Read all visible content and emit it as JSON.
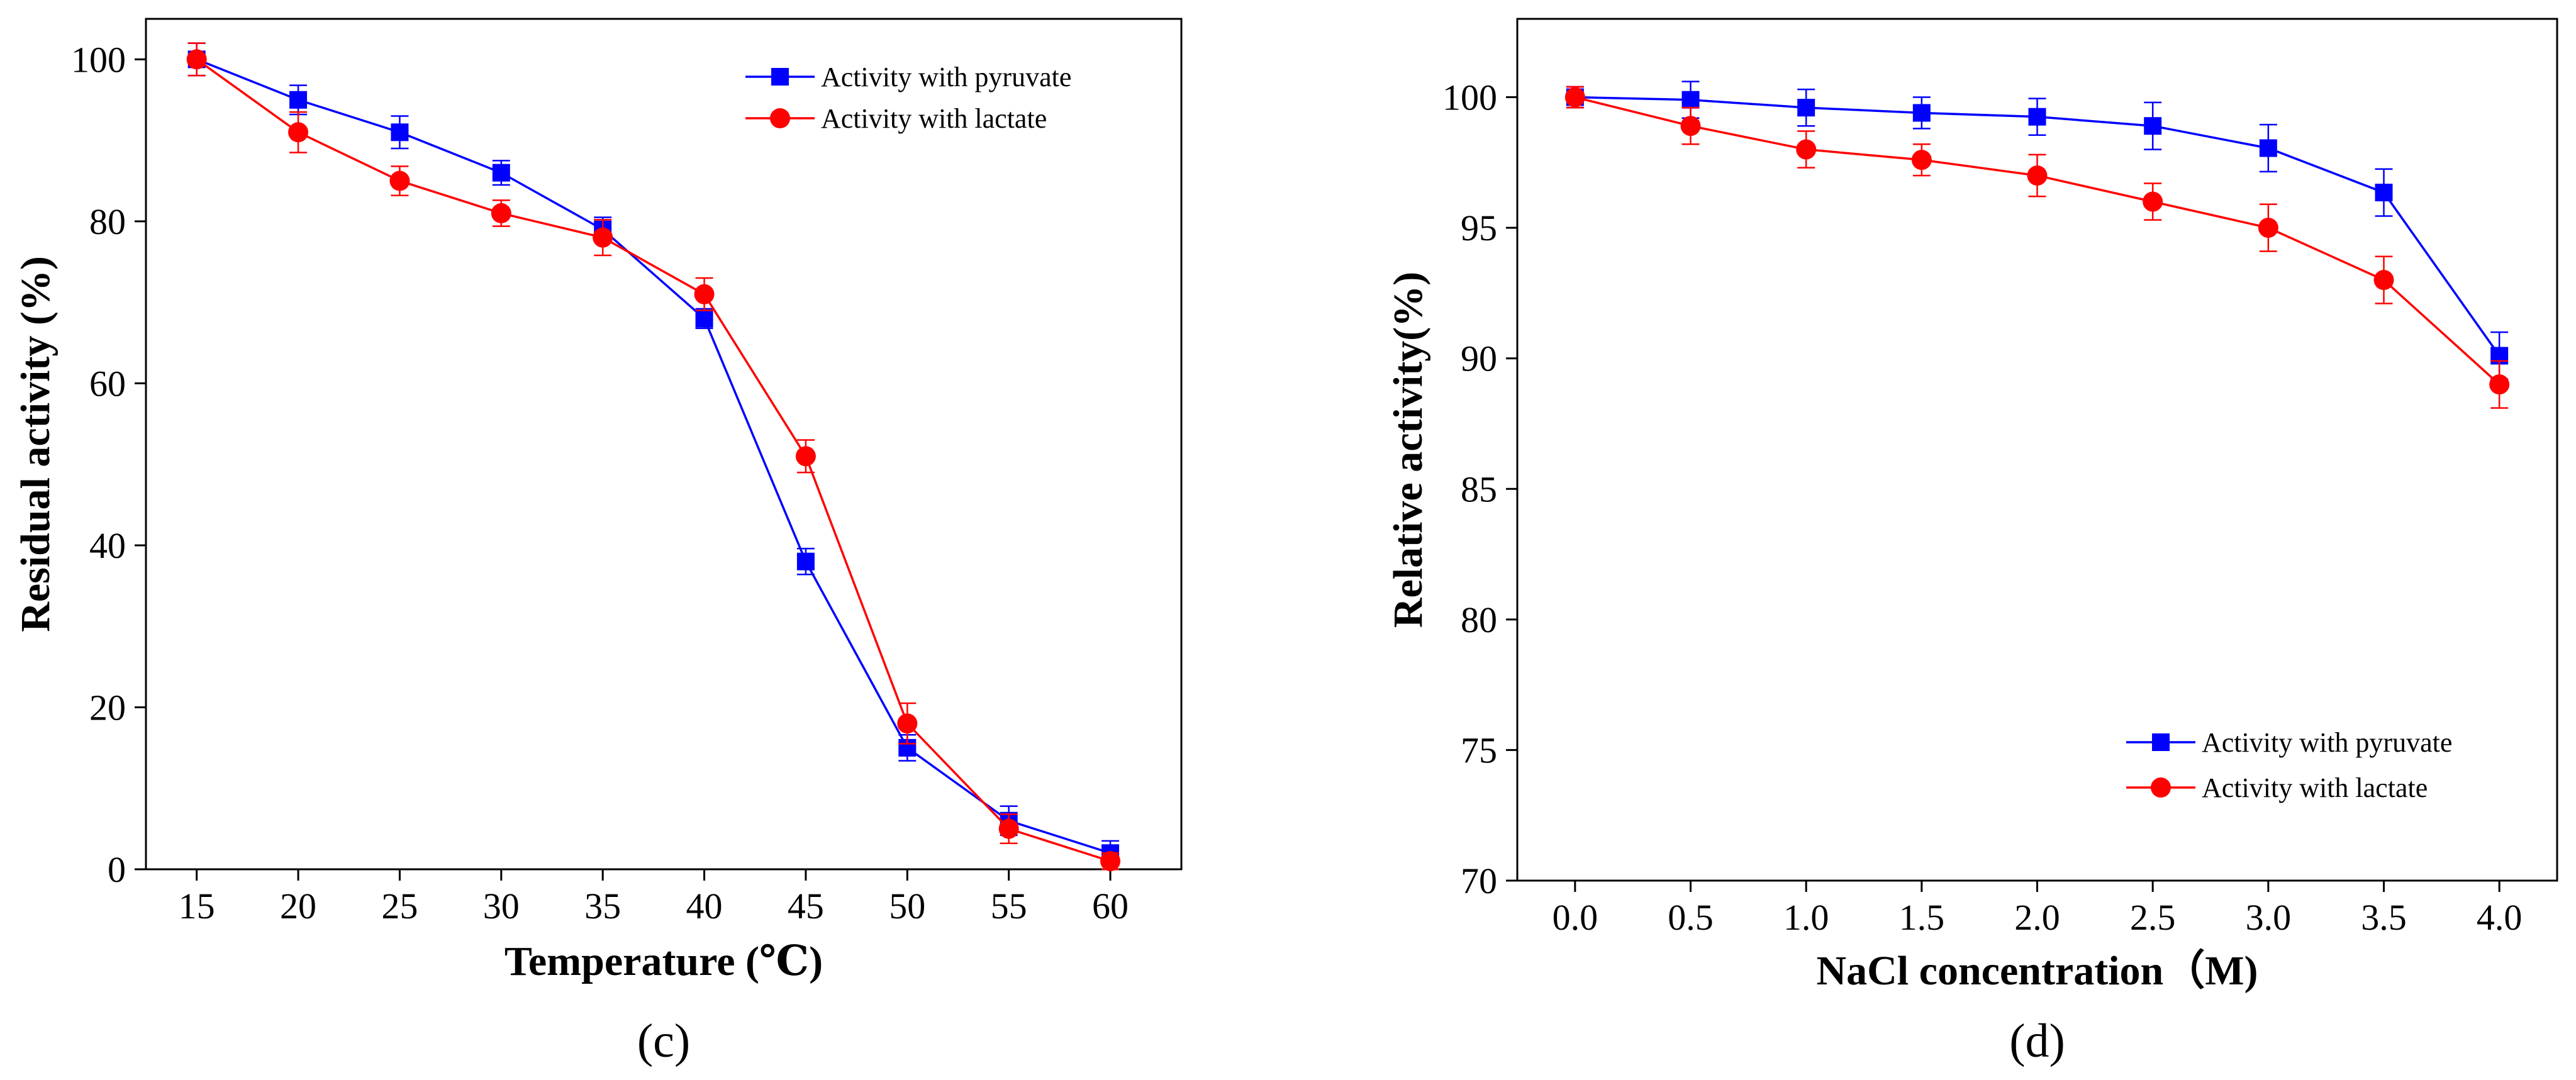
{
  "chart_data": [
    {
      "type": "line",
      "panel_label": "(c)",
      "xlabel": "Temperature (℃)",
      "ylabel": "Residual activity (%)",
      "x": [
        15,
        20,
        25,
        30,
        35,
        40,
        45,
        50,
        55,
        60
      ],
      "x_ticks": [
        "15",
        "20",
        "25",
        "30",
        "35",
        "40",
        "45",
        "50",
        "55",
        "60"
      ],
      "y_ticks": [
        "0",
        "20",
        "40",
        "60",
        "80",
        "100"
      ],
      "xlim": [
        12.5,
        63.5
      ],
      "ylim": [
        0,
        105
      ],
      "legend_position": "top-right",
      "series": [
        {
          "name": "Activity with pyruvate",
          "color": "#0000ff",
          "marker": "square",
          "values": [
            100,
            95,
            91,
            86,
            79,
            68,
            38,
            15,
            6,
            2
          ],
          "errors": [
            2.0,
            1.8,
            2.0,
            1.5,
            1.5,
            1.2,
            1.6,
            1.6,
            1.8,
            1.5
          ]
        },
        {
          "name": "Activity with lactate",
          "color": "#ff0000",
          "marker": "circle",
          "values": [
            100,
            91,
            85,
            81,
            78,
            71,
            51,
            18,
            5,
            1
          ],
          "errors": [
            2.0,
            2.5,
            1.8,
            1.6,
            2.2,
            2.0,
            2.0,
            2.5,
            1.8,
            1.0
          ]
        }
      ]
    },
    {
      "type": "line",
      "panel_label": "(d)",
      "xlabel": "NaCl concentration（M)",
      "ylabel": "Relative activity(%)",
      "x": [
        0.0,
        0.5,
        1.0,
        1.5,
        2.0,
        2.5,
        3.0,
        3.5,
        4.0
      ],
      "x_ticks": [
        "0.0",
        "0.5",
        "1.0",
        "1.5",
        "2.0",
        "2.5",
        "3.0",
        "3.5",
        "4.0"
      ],
      "y_ticks": [
        "70",
        "75",
        "80",
        "85",
        "90",
        "95",
        "100"
      ],
      "xlim": [
        -0.25,
        4.25
      ],
      "ylim": [
        70,
        103
      ],
      "legend_position": "bottom-right",
      "series": [
        {
          "name": "Activity with pyruvate",
          "color": "#0000ff",
          "marker": "square",
          "values": [
            100,
            99.9,
            99.6,
            99.4,
            99.25,
            98.9,
            98.05,
            96.35,
            90.1
          ],
          "errors": [
            0.4,
            0.7,
            0.7,
            0.6,
            0.7,
            0.9,
            0.9,
            0.9,
            0.9
          ]
        },
        {
          "name": "Activity with lactate",
          "color": "#ff0000",
          "marker": "circle",
          "values": [
            100,
            98.9,
            98.0,
            97.6,
            97.0,
            96.0,
            95.0,
            93.0,
            89.0
          ],
          "errors": [
            0.4,
            0.7,
            0.7,
            0.6,
            0.8,
            0.7,
            0.9,
            0.9,
            0.9
          ]
        }
      ]
    }
  ]
}
